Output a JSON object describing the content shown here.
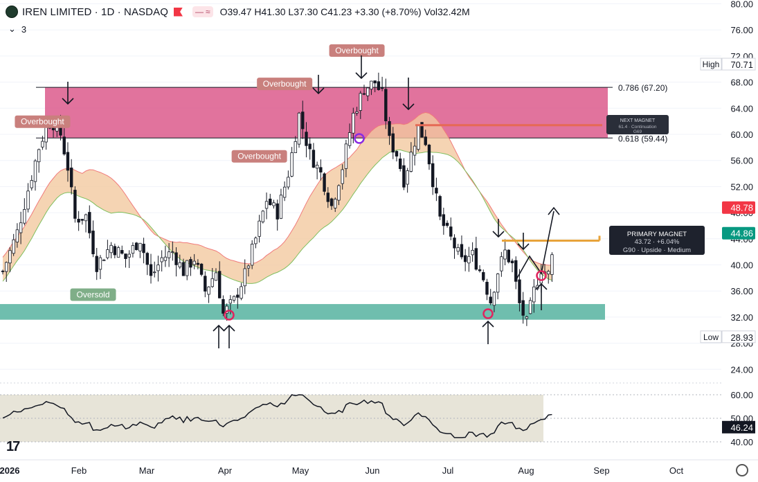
{
  "header": {
    "title": "IREN LIMITED · 1D · NASDAQ",
    "pill_text": "≈",
    "ohlc": "O39.47  H41.30  L37.30  C41.23  +3.30 (+8.70%)  Vol32.42M",
    "indicator_count": "3"
  },
  "colors": {
    "up": "#089981",
    "down": "#f23645",
    "candle": "#131722",
    "overbought_zone": "#dc5a8c",
    "oversold_zone": "#5fb7a5",
    "cloud": "#f2c9a0",
    "cloud_upper": "#f07a7a",
    "cloud_lower": "#7fbf5e",
    "magnet_line": "#e8a33a",
    "next_magnet_line": "#e66a55"
  },
  "chart_data": {
    "type": "candlestick",
    "y_axis": {
      "ticks": [
        24,
        28,
        32,
        36,
        40,
        44,
        48,
        52,
        56,
        60,
        64,
        68,
        72,
        76,
        80
      ],
      "labels": [
        "24.00",
        "28.00",
        "32.00",
        "36.00",
        "40.00",
        "44.00",
        "48.00",
        "52.00",
        "56.00",
        "60.00",
        "64.00",
        "68.00",
        "72.00",
        "76.00",
        "80.00"
      ],
      "ylim": [
        20.5,
        80.5
      ]
    },
    "x_axis": {
      "labels": [
        "2026",
        "Feb",
        "Mar",
        "Apr",
        "May",
        "Jun",
        "Jul",
        "Aug",
        "Sep",
        "Oct"
      ]
    },
    "price_labels": [
      {
        "text": "High",
        "value": "70.71",
        "price": 70.71,
        "style": "plain"
      },
      {
        "text": "Low",
        "value": "28.93",
        "price": 28.93,
        "style": "plain"
      },
      {
        "text": "",
        "value": "48.78",
        "price": 48.78,
        "style": "red"
      },
      {
        "text": "",
        "value": "44.86",
        "price": 44.86,
        "style": "green"
      }
    ],
    "fib_levels": [
      {
        "label": "0.786 (67.20)",
        "price": 67.2
      },
      {
        "label": "0.618 (59.44)",
        "price": 59.44
      }
    ],
    "zones": [
      {
        "name": "overbought",
        "top": 67.2,
        "bottom": 59.44
      },
      {
        "name": "oversold",
        "top": 34.0,
        "bottom": 31.6
      }
    ],
    "annotations": [
      {
        "text": "Overbought",
        "day": 11,
        "price": 61.3,
        "color": "overbought"
      },
      {
        "text": "Overbought",
        "day": 78,
        "price": 67.1,
        "color": "overbought"
      },
      {
        "text": "Overbought",
        "day": 98,
        "price": 72.2,
        "color": "overbought"
      },
      {
        "text": "Overbought",
        "day": 71,
        "price": 56.0,
        "color": "overbought"
      },
      {
        "text": "Oversold",
        "day": 25,
        "price": 34.8,
        "color": "oversold"
      }
    ],
    "next_magnet": {
      "title": "NEXT MAGNET",
      "line1": "61.4  ·  Continuation",
      "line2": "G69",
      "price": 61.4
    },
    "primary_magnet": {
      "title": "PRIMARY MAGNET",
      "line1": "43.72  ·  +6.04%",
      "line2": "G90  ·  Upside  ·  Medium",
      "price": 43.72
    },
    "candles": [],
    "oscillator": {
      "ticks": [
        40,
        50,
        60
      ],
      "labels": [
        "40.00",
        "50.00",
        "60.00"
      ],
      "current": "46.24",
      "values": []
    }
  }
}
